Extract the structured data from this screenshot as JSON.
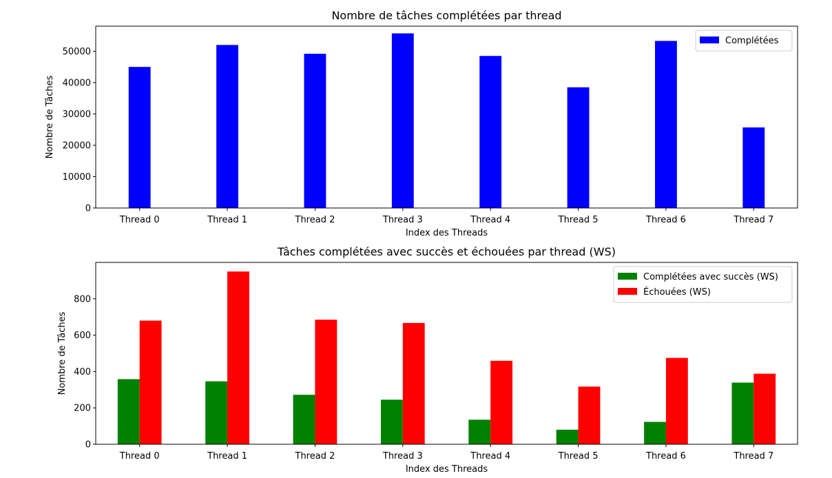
{
  "chart_data": [
    {
      "type": "bar",
      "title": "Nombre de tâches complétées par thread",
      "xlabel": "Index des Threads",
      "ylabel": "Nombre de Tâches",
      "categories": [
        "Thread 0",
        "Thread 1",
        "Thread 2",
        "Thread 3",
        "Thread 4",
        "Thread 5",
        "Thread 6",
        "Thread 7"
      ],
      "ylim": [
        0,
        58000
      ],
      "yticks": [
        0,
        10000,
        20000,
        30000,
        40000,
        50000
      ],
      "legend_position": "top-right",
      "grid": false,
      "series": [
        {
          "name": "Complétées",
          "color": "#0000ff",
          "values": [
            45000,
            52000,
            49200,
            55700,
            48500,
            38500,
            53300,
            25700
          ]
        }
      ]
    },
    {
      "type": "bar",
      "title": "Tâches complétées avec succès et échouées par thread (WS)",
      "xlabel": "Index des Threads",
      "ylabel": "Nombre de Tâches",
      "categories": [
        "Thread 0",
        "Thread 1",
        "Thread 2",
        "Thread 3",
        "Thread 4",
        "Thread 5",
        "Thread 6",
        "Thread 7"
      ],
      "ylim": [
        0,
        1000
      ],
      "yticks": [
        0,
        200,
        400,
        600,
        800
      ],
      "legend_position": "top-right",
      "grid": false,
      "series": [
        {
          "name": "Complétées avec succès (WS)",
          "color": "#008000",
          "values": [
            358,
            346,
            272,
            245,
            135,
            80,
            123,
            339
          ]
        },
        {
          "name": "Échouées (WS)",
          "color": "#ff0000",
          "values": [
            680,
            950,
            685,
            667,
            459,
            317,
            475,
            388
          ]
        }
      ]
    }
  ]
}
